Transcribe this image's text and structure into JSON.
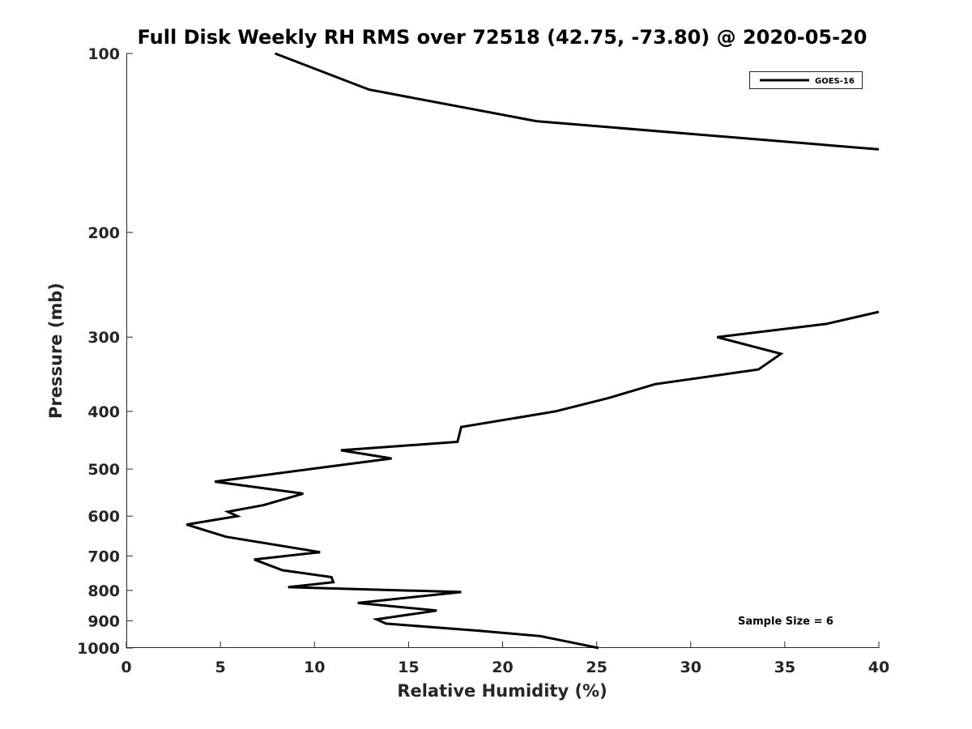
{
  "chart_data": {
    "type": "line",
    "title": "Full Disk Weekly RH RMS over 72518 (42.75, -73.80) @ 2020-05-20",
    "xlabel": "Relative Humidity (%)",
    "ylabel": "Pressure (mb)",
    "xlim": [
      0,
      40
    ],
    "ylim": [
      1000,
      100
    ],
    "y_scale": "log",
    "y_inverted": true,
    "x_ticks": [
      0,
      5,
      10,
      15,
      20,
      25,
      30,
      35,
      40
    ],
    "x_tick_labels": [
      "0",
      "5",
      "10",
      "15",
      "20",
      "25",
      "30",
      "35",
      "40"
    ],
    "y_ticks": [
      100,
      200,
      300,
      400,
      500,
      600,
      700,
      800,
      900,
      1000
    ],
    "y_tick_labels": [
      "100",
      "200",
      "300",
      "400",
      "500",
      "600",
      "700",
      "800",
      "900",
      "1000"
    ],
    "grid": false,
    "legend_position": "top-right",
    "annotation": "Sample Size = 6",
    "series": [
      {
        "name": "GOES-16",
        "color": "#000000",
        "segments": [
          [
            {
              "x": 7.9,
              "y": 100
            },
            {
              "x": 12.9,
              "y": 115
            },
            {
              "x": 21.8,
              "y": 130
            },
            {
              "x": 40.0,
              "y": 145
            }
          ],
          [
            {
              "x": 40.0,
              "y": 272
            },
            {
              "x": 37.2,
              "y": 285
            },
            {
              "x": 31.4,
              "y": 300
            },
            {
              "x": 34.8,
              "y": 320
            },
            {
              "x": 33.6,
              "y": 340
            },
            {
              "x": 28.1,
              "y": 360
            },
            {
              "x": 25.6,
              "y": 380
            },
            {
              "x": 22.8,
              "y": 400
            },
            {
              "x": 17.8,
              "y": 425
            },
            {
              "x": 17.6,
              "y": 450
            },
            {
              "x": 11.4,
              "y": 465
            },
            {
              "x": 14.1,
              "y": 480
            },
            {
              "x": 9.8,
              "y": 500
            },
            {
              "x": 4.7,
              "y": 525
            },
            {
              "x": 9.4,
              "y": 550
            },
            {
              "x": 7.3,
              "y": 575
            },
            {
              "x": 5.4,
              "y": 590
            },
            {
              "x": 5.9,
              "y": 600
            },
            {
              "x": 3.2,
              "y": 620
            },
            {
              "x": 5.3,
              "y": 650
            },
            {
              "x": 10.3,
              "y": 690
            },
            {
              "x": 6.8,
              "y": 710
            },
            {
              "x": 8.3,
              "y": 740
            },
            {
              "x": 10.9,
              "y": 760
            },
            {
              "x": 11.0,
              "y": 775
            },
            {
              "x": 8.6,
              "y": 790
            },
            {
              "x": 17.8,
              "y": 805
            },
            {
              "x": 12.3,
              "y": 840
            },
            {
              "x": 16.5,
              "y": 865
            },
            {
              "x": 13.3,
              "y": 895
            },
            {
              "x": 13.8,
              "y": 910
            },
            {
              "x": 18.7,
              "y": 935
            },
            {
              "x": 22.0,
              "y": 955
            },
            {
              "x": 24.1,
              "y": 985
            },
            {
              "x": 25.1,
              "y": 1000
            }
          ]
        ]
      }
    ]
  }
}
